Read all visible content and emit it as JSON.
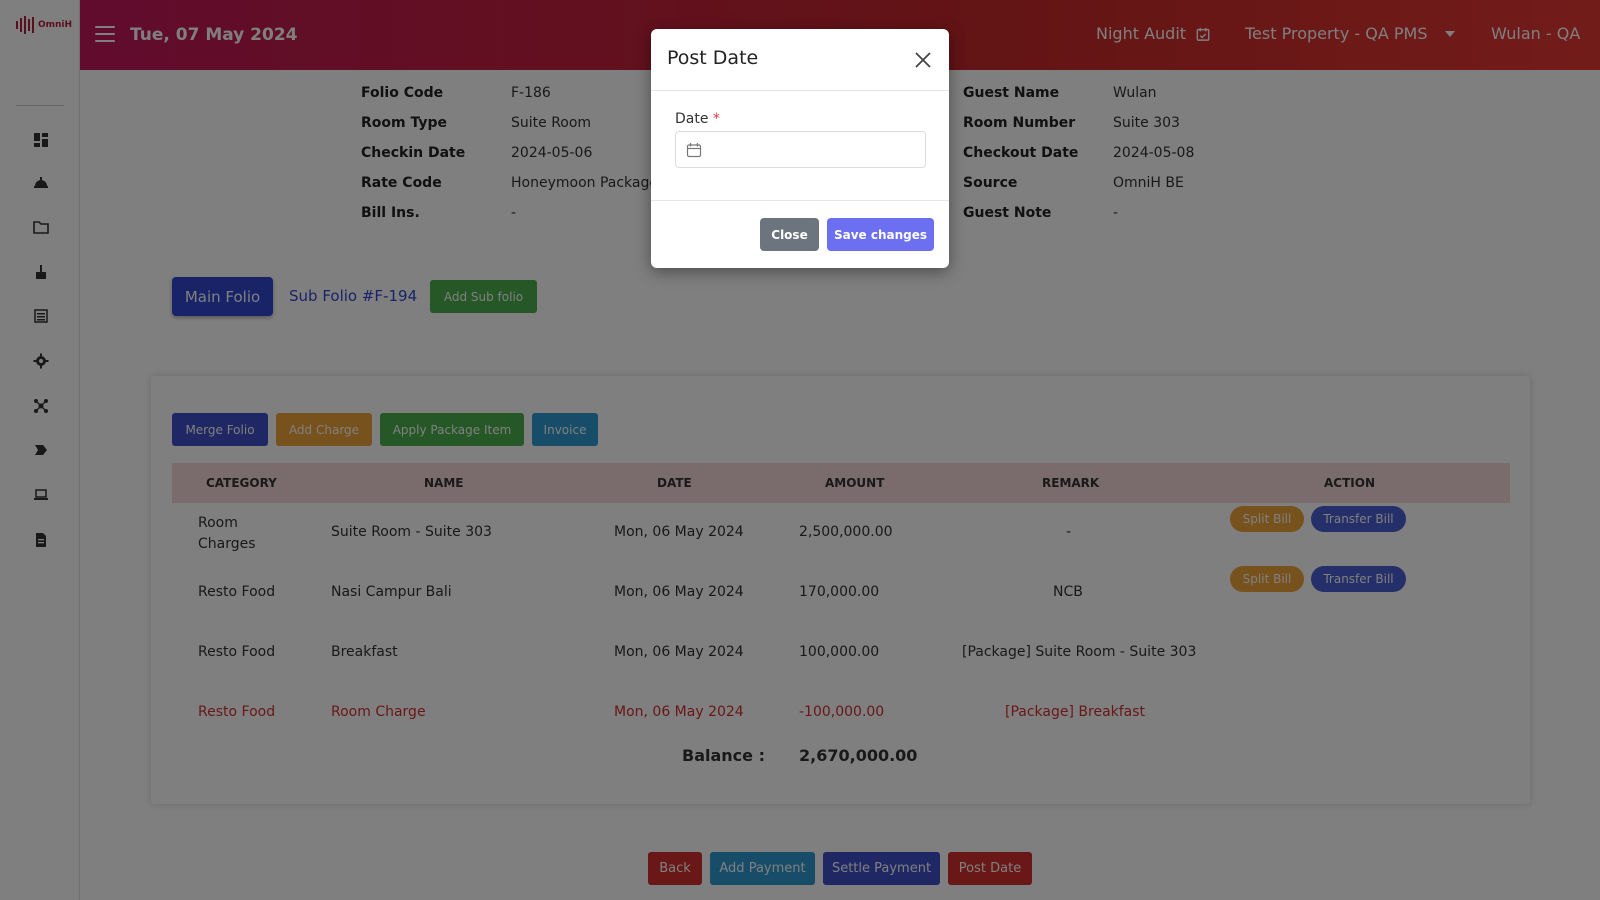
{
  "app": {
    "logo_text": "OmniH"
  },
  "header": {
    "date": "Tue, 07 May 2024",
    "night_audit": "Night Audit",
    "property": "Test Property - QA PMS",
    "user": "Wulan - QA"
  },
  "sidebar": {
    "items": [
      {
        "icon": "dashboard-icon"
      },
      {
        "icon": "concierge-bell-icon"
      },
      {
        "icon": "folder-icon"
      },
      {
        "icon": "housekeeping-broom-icon"
      },
      {
        "icon": "list-icon"
      },
      {
        "icon": "gear-icon"
      },
      {
        "icon": "network-icon"
      },
      {
        "icon": "tag-icon"
      },
      {
        "icon": "laptop-icon"
      },
      {
        "icon": "report-icon"
      }
    ]
  },
  "info_left": [
    {
      "label": "Folio Code",
      "value": "F-186"
    },
    {
      "label": "Room Type",
      "value": "Suite Room"
    },
    {
      "label": "Checkin Date",
      "value": "2024-05-06"
    },
    {
      "label": "Rate Code",
      "value": "Honeymoon Package -"
    },
    {
      "label": "Bill Ins.",
      "value": "-"
    }
  ],
  "info_right": [
    {
      "label": "Guest Name",
      "value": "Wulan"
    },
    {
      "label": "Room Number",
      "value": "Suite 303"
    },
    {
      "label": "Checkout Date",
      "value": "2024-05-08"
    },
    {
      "label": "Source",
      "value": "OmniH BE"
    },
    {
      "label": "Guest Note",
      "value": "-"
    }
  ],
  "folio_tabs": {
    "main": "Main Folio",
    "sub": "Sub Folio #F-194",
    "add_sub": "Add Sub folio"
  },
  "toolbar": {
    "merge": "Merge Folio",
    "add_charge": "Add Charge",
    "apply_package": "Apply Package Item",
    "invoice": "Invoice"
  },
  "table": {
    "headers": [
      "CATEGORY",
      "NAME",
      "DATE",
      "AMOUNT",
      "REMARK",
      "ACTION"
    ],
    "rows": [
      {
        "category": "Room Charges",
        "name": "Suite Room - Suite 303",
        "date": "Mon, 06 May 2024",
        "amount": "2,500,000.00",
        "remark": "-"
      },
      {
        "category": "Resto Food",
        "name": "Nasi Campur Bali",
        "date": "Mon, 06 May 2024",
        "amount": "170,000.00",
        "remark": "NCB"
      },
      {
        "category": "Resto Food",
        "name": "Breakfast",
        "date": "Mon, 06 May 2024",
        "amount": "100,000.00",
        "remark": "[Package] Suite Room - Suite 303"
      },
      {
        "category": "Resto Food",
        "name": "Room Charge",
        "date": "Mon, 06 May 2024",
        "amount": "-100,000.00",
        "remark": "[Package] Breakfast"
      }
    ],
    "split_label": "Split Bill",
    "transfer_label": "Transfer Bill"
  },
  "balance": {
    "label": "Balance :",
    "value": "2,670,000.00"
  },
  "footer": {
    "back": "Back",
    "add_payment": "Add Payment",
    "settle_payment": "Settle Payment",
    "post_date": "Post Date"
  },
  "modal": {
    "title": "Post Date",
    "date_label": "Date",
    "required_mark": "*",
    "date_value": "",
    "close_label": "Close",
    "save_label": "Save changes"
  },
  "colors": {
    "header_start": "#c2185b",
    "header_end": "#e53935",
    "primary": "#3347d1",
    "success": "#4cae4c",
    "warning": "#f0a53b",
    "info": "#2e9ad0",
    "danger": "#d32f2f",
    "negative_row": "#d32f2f"
  }
}
